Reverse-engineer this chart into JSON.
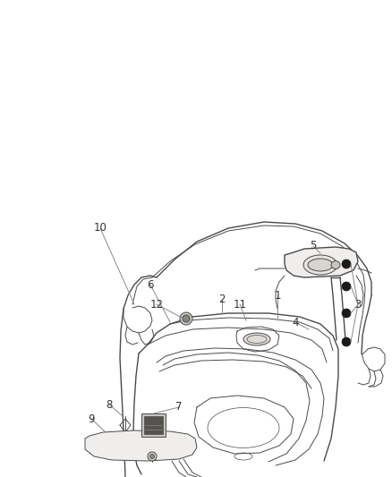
{
  "bg_color": "#ffffff",
  "line_color": "#4a4a4a",
  "label_color": "#333333",
  "dot_color": "#1a1a1a",
  "fig_width": 4.38,
  "fig_height": 5.33,
  "dpi": 100,
  "label_fontsize": 8.5
}
